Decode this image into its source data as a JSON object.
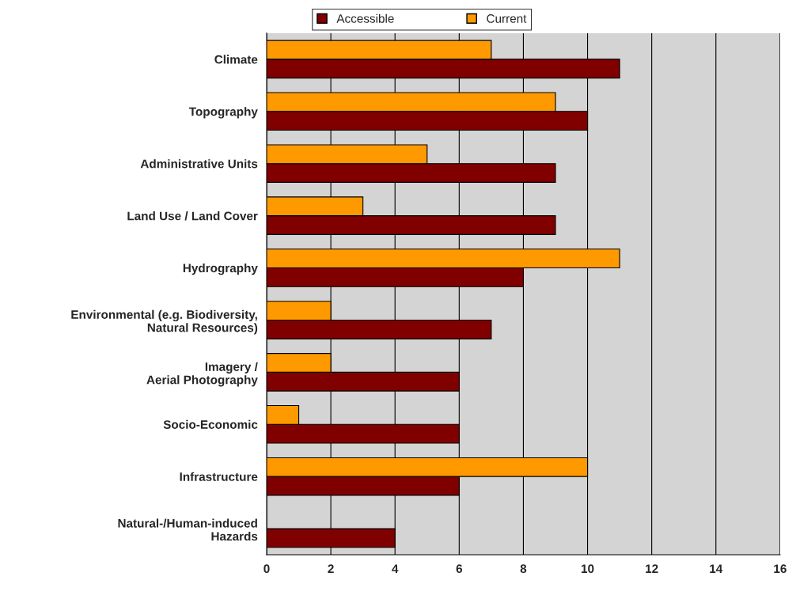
{
  "chart_data": {
    "type": "bar",
    "orientation": "horizontal",
    "categories": [
      "Climate",
      "Topography",
      "Administrative Units",
      "Land Use / Land Cover",
      "Hydrography",
      "Environmental (e.g. Biodiversity,\nNatural Resources)",
      "Imagery /\nAerial Photography",
      "Socio-Economic",
      "Infrastructure",
      "Natural-/Human-induced\nHazards"
    ],
    "series": [
      {
        "name": "Accessible",
        "color": "#800000",
        "values": [
          11,
          10,
          9,
          9,
          8,
          7,
          6,
          6,
          6,
          4
        ]
      },
      {
        "name": "Current",
        "color": "#ff9900",
        "values": [
          7,
          9,
          5,
          3,
          11,
          2,
          2,
          1,
          10,
          null
        ]
      }
    ],
    "xlim": [
      0,
      16
    ],
    "xticks": [
      0,
      2,
      4,
      6,
      8,
      10,
      12,
      14,
      16
    ],
    "grid": "x",
    "legend": "top"
  }
}
